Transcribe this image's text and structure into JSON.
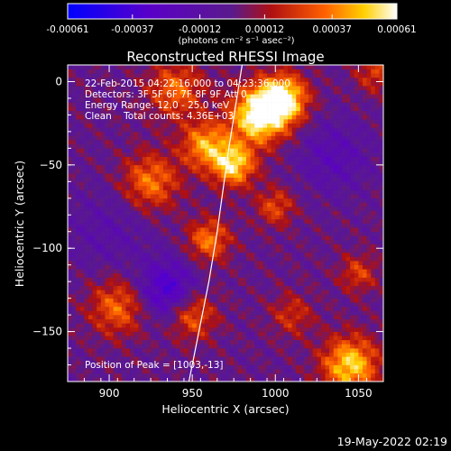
{
  "chart_data": {
    "type": "heatmap",
    "title": "Reconstructed RHESSI Image",
    "xlabel": "Heliocentric X (arcsec)",
    "ylabel": "Heliocentric Y (arcsec)",
    "xlim": [
      875,
      1065
    ],
    "ylim": [
      -180,
      10
    ],
    "x_ticks": [
      900,
      950,
      1000,
      1050
    ],
    "y_ticks": [
      0,
      -50,
      -100,
      -150
    ],
    "colorbar": {
      "range": [
        -0.00061,
        0.00061
      ],
      "tick_values": [
        -0.00061,
        -0.00037,
        -0.00012,
        0.00012,
        0.00037,
        0.00061
      ],
      "tick_labels": [
        "-0.00061",
        "-0.00037",
        "-0.00012",
        "0.00012",
        "0.00037",
        "0.00061"
      ],
      "unit_label": "(photons cm⁻² s⁻¹ asec⁻²)"
    },
    "annotations": [
      "22-Feb-2015 04:22:16.000 to 04:23:36.000",
      "Detectors: 3F 5F 6F 7F 8F 9F Att 0",
      "Energy Range: 12.0 - 25.0 keV",
      "Clean    Total counts: 4.36E+03",
      "Position of Peak = [1003,-13]"
    ],
    "peak": {
      "x": 1003,
      "y": -13
    },
    "sources": [
      {
        "x": 990,
        "y": -20,
        "amp": 1.05,
        "sigma": 12
      },
      {
        "x": 1005,
        "y": -10,
        "amp": 0.95,
        "sigma": 10
      },
      {
        "x": 975,
        "y": -50,
        "amp": 0.85,
        "sigma": 9
      },
      {
        "x": 958,
        "y": -38,
        "amp": 0.7,
        "sigma": 10
      },
      {
        "x": 940,
        "y": -5,
        "amp": 0.55,
        "sigma": 12
      },
      {
        "x": 925,
        "y": -60,
        "amp": 0.6,
        "sigma": 12
      },
      {
        "x": 960,
        "y": -95,
        "amp": 0.6,
        "sigma": 9
      },
      {
        "x": 905,
        "y": -135,
        "amp": 0.55,
        "sigma": 12
      },
      {
        "x": 950,
        "y": -140,
        "amp": 0.55,
        "sigma": 10
      },
      {
        "x": 1000,
        "y": -75,
        "amp": 0.45,
        "sigma": 8
      },
      {
        "x": 1045,
        "y": -170,
        "amp": 0.85,
        "sigma": 12
      },
      {
        "x": 1050,
        "y": -115,
        "amp": 0.4,
        "sigma": 8
      },
      {
        "x": 1060,
        "y": 5,
        "amp": 0.4,
        "sigma": 8
      },
      {
        "x": 1010,
        "y": -140,
        "amp": 0.35,
        "sigma": 9
      },
      {
        "x": 935,
        "y": -125,
        "amp": -0.6,
        "sigma": 12
      },
      {
        "x": 1035,
        "y": -45,
        "amp": -0.3,
        "sigma": 15
      },
      {
        "x": 900,
        "y": -90,
        "amp": -0.2,
        "sigma": 18
      }
    ],
    "limb_curve": [
      [
        980,
        10
      ],
      [
        972,
        -40
      ],
      [
        965,
        -90
      ],
      [
        960,
        -120
      ],
      [
        952,
        -160
      ],
      [
        948,
        -180
      ]
    ]
  },
  "footer": {
    "date_stamp": "19-May-2022 02:19"
  }
}
